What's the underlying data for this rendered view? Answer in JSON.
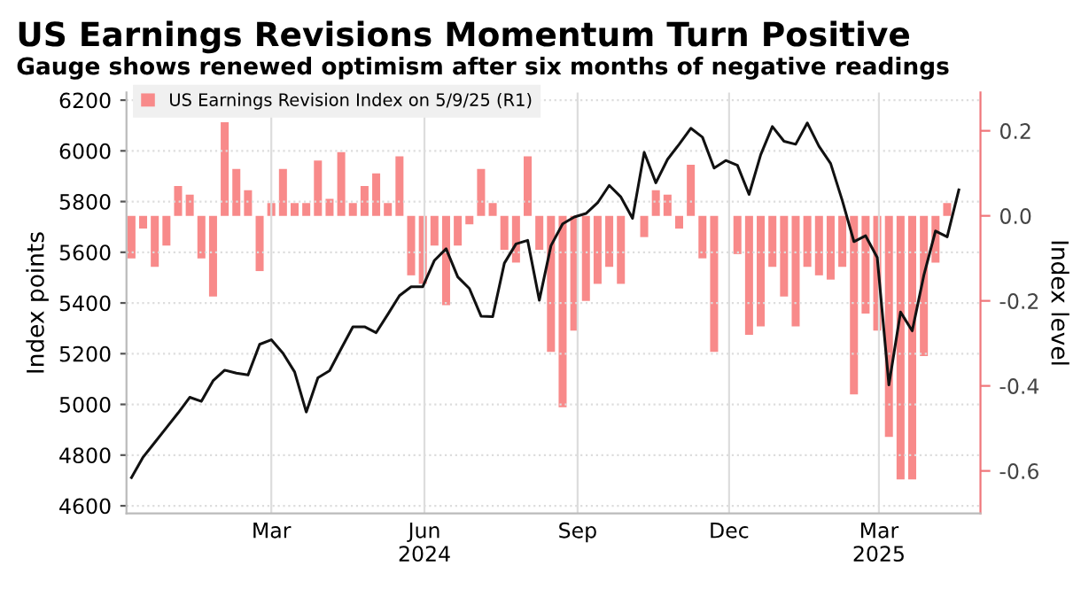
{
  "chart_data": {
    "type": "bar",
    "title": "US Earnings Revisions Momentum Turn Positive",
    "subtitle": "Gauge shows renewed optimism after six months of negative readings",
    "ylabel": "Index points",
    "y2label": "Index level",
    "x": [
      "2023-12-08",
      "2023-12-15",
      "2023-12-22",
      "2023-12-29",
      "2024-01-05",
      "2024-01-12",
      "2024-01-19",
      "2024-01-26",
      "2024-02-02",
      "2024-02-09",
      "2024-02-16",
      "2024-02-23",
      "2024-03-01",
      "2024-03-08",
      "2024-03-15",
      "2024-03-22",
      "2024-03-29",
      "2024-04-05",
      "2024-04-12",
      "2024-04-19",
      "2024-04-26",
      "2024-05-03",
      "2024-05-10",
      "2024-05-17",
      "2024-05-24",
      "2024-05-31",
      "2024-06-07",
      "2024-06-14",
      "2024-06-21",
      "2024-06-28",
      "2024-07-05",
      "2024-07-12",
      "2024-07-19",
      "2024-07-26",
      "2024-08-02",
      "2024-08-09",
      "2024-08-16",
      "2024-08-23",
      "2024-08-30",
      "2024-09-06",
      "2024-09-13",
      "2024-09-20",
      "2024-09-27",
      "2024-10-04",
      "2024-10-11",
      "2024-10-18",
      "2024-10-25",
      "2024-11-01",
      "2024-11-08",
      "2024-11-15",
      "2024-11-22",
      "2024-11-29",
      "2024-12-06",
      "2024-12-13",
      "2024-12-20",
      "2024-12-27",
      "2025-01-03",
      "2025-01-10",
      "2025-01-17",
      "2025-01-24",
      "2025-01-31",
      "2025-02-07",
      "2025-02-14",
      "2025-02-21",
      "2025-02-28",
      "2025-03-07",
      "2025-03-14",
      "2025-03-21",
      "2025-03-28",
      "2025-04-04",
      "2025-04-11"
    ],
    "series": [
      {
        "name": "US Earnings Revision Index on 5/9/25 (R1)",
        "axis": "y2",
        "color": "#f88a8a",
        "values": [
          -0.1,
          -0.03,
          -0.12,
          -0.07,
          0.07,
          0.05,
          -0.1,
          -0.19,
          0.22,
          0.11,
          0.06,
          -0.13,
          0.03,
          0.11,
          0.03,
          0.03,
          0.13,
          0.04,
          0.15,
          0.03,
          0.07,
          0.1,
          0.03,
          0.14,
          -0.14,
          -0.16,
          -0.07,
          -0.21,
          -0.07,
          -0.02,
          0.11,
          0.03,
          -0.08,
          -0.11,
          0.14,
          -0.08,
          -0.32,
          -0.45,
          -0.27,
          -0.2,
          -0.16,
          -0.12,
          -0.16,
          0,
          -0.05,
          0.06,
          0.05,
          -0.03,
          0.12,
          -0.1,
          -0.32,
          0,
          -0.09,
          -0.28,
          -0.26,
          -0.12,
          -0.19,
          -0.26,
          -0.12,
          -0.14,
          -0.15,
          -0.12,
          -0.42,
          -0.23,
          -0.27,
          -0.52,
          -0.62,
          -0.62,
          -0.33,
          -0.11,
          0.03
        ]
      },
      {
        "type": "line",
        "color": "#111111",
        "x": [
          "2023-12-08",
          "2023-12-15",
          "2023-12-22",
          "2023-12-29",
          "2024-01-05",
          "2024-01-12",
          "2024-01-19",
          "2024-01-26",
          "2024-02-02",
          "2024-02-09",
          "2024-02-16",
          "2024-02-23",
          "2024-03-01",
          "2024-03-08",
          "2024-03-15",
          "2024-03-22",
          "2024-03-29",
          "2024-04-05",
          "2024-04-12",
          "2024-04-19",
          "2024-04-26",
          "2024-05-03",
          "2024-05-10",
          "2024-05-17",
          "2024-05-24",
          "2024-05-31",
          "2024-06-07",
          "2024-06-14",
          "2024-06-21",
          "2024-06-28",
          "2024-07-05",
          "2024-07-12",
          "2024-07-19",
          "2024-07-26",
          "2024-08-02",
          "2024-08-09",
          "2024-08-16",
          "2024-08-23",
          "2024-08-30",
          "2024-09-06",
          "2024-09-13",
          "2024-09-20",
          "2024-09-27",
          "2024-10-04",
          "2024-10-11",
          "2024-10-18",
          "2024-10-25",
          "2024-11-01",
          "2024-11-08",
          "2024-11-15",
          "2024-11-22",
          "2024-11-29",
          "2024-12-06",
          "2024-12-13",
          "2024-12-20",
          "2024-12-27",
          "2025-01-03",
          "2025-01-10",
          "2025-01-17",
          "2025-01-24",
          "2025-01-31",
          "2025-02-07",
          "2025-02-14",
          "2025-02-21",
          "2025-02-28",
          "2025-03-07",
          "2025-03-14",
          "2025-03-21",
          "2025-03-28",
          "2025-04-04",
          "2025-04-11",
          "2025-04-18"
        ],
        "values": [
          4711,
          4792,
          4850,
          4908,
          4966,
          5028,
          5012,
          5093,
          5135,
          5123,
          5116,
          5237,
          5255,
          5202,
          5128,
          4970,
          5105,
          5133,
          5220,
          5306,
          5306,
          5283,
          5355,
          5429,
          5464,
          5464,
          5568,
          5614,
          5503,
          5457,
          5348,
          5346,
          5557,
          5633,
          5647,
          5411,
          5626,
          5712,
          5739,
          5753,
          5795,
          5864,
          5818,
          5734,
          5994,
          5874,
          5966,
          6026,
          6089,
          6054,
          5932,
          5962,
          5943,
          5828,
          5985,
          6096,
          6038,
          6026,
          6110,
          6018,
          5950,
          5804,
          5642,
          5665,
          5579,
          5077,
          5364,
          5290,
          5510,
          5684,
          5661,
          5846
        ]
      }
    ],
    "xlim": [
      "2023-12-05",
      "2025-05-01"
    ],
    "xticks": [
      {
        "value": "2024-03-01",
        "label": "Mar"
      },
      {
        "value": "2024-06-01",
        "label": "Jun\n2024"
      },
      {
        "value": "2024-09-01",
        "label": "Sep"
      },
      {
        "value": "2024-12-01",
        "label": "Dec"
      },
      {
        "value": "2025-03-01",
        "label": "Mar\n2025"
      }
    ],
    "ylim": [
      4570,
      6230
    ],
    "yticks": [
      4600,
      4800,
      5000,
      5200,
      5400,
      5600,
      5800,
      6000,
      6200
    ],
    "y2lim": [
      -0.7,
      0.29
    ],
    "y2ticks": [
      {
        "value": -0.6,
        "label": "-0.6"
      },
      {
        "value": -0.4,
        "label": "-0.4"
      },
      {
        "value": -0.2,
        "label": "-0.2"
      },
      {
        "value": 0.0,
        "label": "0.0"
      },
      {
        "value": 0.2,
        "label": "0.2"
      }
    ],
    "grid": true,
    "legend": "top left"
  }
}
